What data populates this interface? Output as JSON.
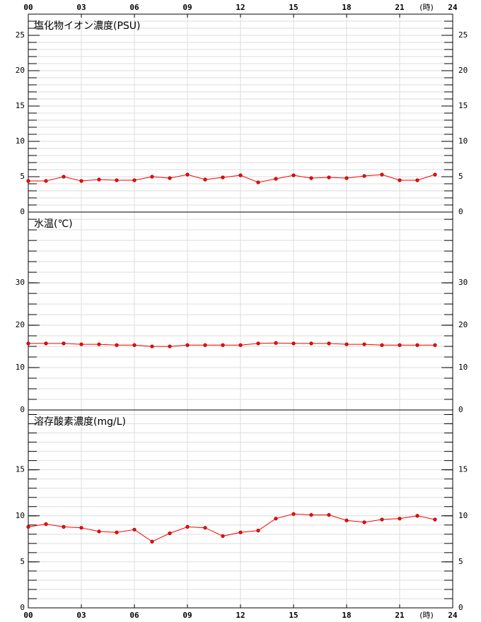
{
  "chart_data": [
    {
      "type": "line",
      "title": "塩化物イオン濃度(PSU)",
      "xlabel": "(時)",
      "x": [
        0,
        1,
        2,
        3,
        4,
        5,
        6,
        7,
        8,
        9,
        10,
        11,
        12,
        13,
        14,
        15,
        16,
        17,
        18,
        19,
        20,
        21,
        22,
        23
      ],
      "series": [
        {
          "color": "#ff0000",
          "values": [
            4.4,
            4.4,
            5.0,
            4.4,
            4.6,
            4.5,
            4.5,
            5.0,
            4.8,
            5.3,
            4.6,
            4.9,
            5.2,
            4.2,
            4.7,
            5.2,
            4.8,
            4.9,
            4.8,
            5.1,
            5.3,
            4.5,
            4.5,
            5.3
          ]
        }
      ],
      "xlim": [
        0,
        24
      ],
      "xticks": [
        {
          "value": 0,
          "label": "00"
        },
        {
          "value": 3,
          "label": "03"
        },
        {
          "value": 6,
          "label": "06"
        },
        {
          "value": 9,
          "label": "09"
        },
        12,
        15,
        18,
        21,
        24
      ],
      "ylim": [
        0,
        28
      ],
      "yticks": [
        0,
        5,
        10,
        15,
        20,
        25
      ],
      "minor_step": 1,
      "grid": true
    },
    {
      "type": "line",
      "title": "水温(℃)",
      "x": [
        0,
        1,
        2,
        3,
        4,
        5,
        6,
        7,
        8,
        9,
        10,
        11,
        12,
        13,
        14,
        15,
        16,
        17,
        18,
        19,
        20,
        21,
        22,
        23
      ],
      "series": [
        {
          "color": "#ff0000",
          "values": [
            15.7,
            15.7,
            15.7,
            15.5,
            15.5,
            15.3,
            15.3,
            15.0,
            15.0,
            15.3,
            15.3,
            15.3,
            15.3,
            15.7,
            15.8,
            15.7,
            15.7,
            15.7,
            15.5,
            15.5,
            15.3,
            15.3,
            15.3,
            15.3
          ]
        }
      ],
      "xlim": [
        0,
        24
      ],
      "xticks": [
        {
          "value": 0,
          "label": "00"
        },
        {
          "value": 3,
          "label": "03"
        },
        {
          "value": 6,
          "label": "06"
        },
        {
          "value": 9,
          "label": "09"
        },
        12,
        15,
        18,
        21,
        24
      ],
      "ylim": [
        0,
        46.7
      ],
      "yticks": [
        0,
        10,
        20,
        30
      ],
      "minor_step": 2.5,
      "grid": true
    },
    {
      "type": "line",
      "title": "溶存酸素濃度(mg/L)",
      "xlabel": "(時)",
      "x": [
        0,
        1,
        2,
        3,
        4,
        5,
        6,
        7,
        8,
        9,
        10,
        11,
        12,
        13,
        14,
        15,
        16,
        17,
        18,
        19,
        20,
        21,
        22,
        23
      ],
      "series": [
        {
          "color": "#ff0000",
          "values": [
            8.8,
            9.1,
            8.8,
            8.7,
            8.3,
            8.2,
            8.5,
            7.2,
            8.1,
            8.8,
            8.7,
            7.8,
            8.2,
            8.4,
            9.7,
            10.2,
            10.1,
            10.1,
            9.5,
            9.3,
            9.6,
            9.7,
            10.0,
            9.6
          ]
        }
      ],
      "xlim": [
        0,
        24
      ],
      "xticks": [
        {
          "value": 0,
          "label": "00"
        },
        {
          "value": 3,
          "label": "03"
        },
        {
          "value": 6,
          "label": "06"
        },
        {
          "value": 9,
          "label": "09"
        },
        12,
        15,
        18,
        21,
        24
      ],
      "ylim": [
        0,
        21.5
      ],
      "yticks": [
        0,
        5,
        10,
        15
      ],
      "minor_step": 1,
      "grid": true
    }
  ]
}
